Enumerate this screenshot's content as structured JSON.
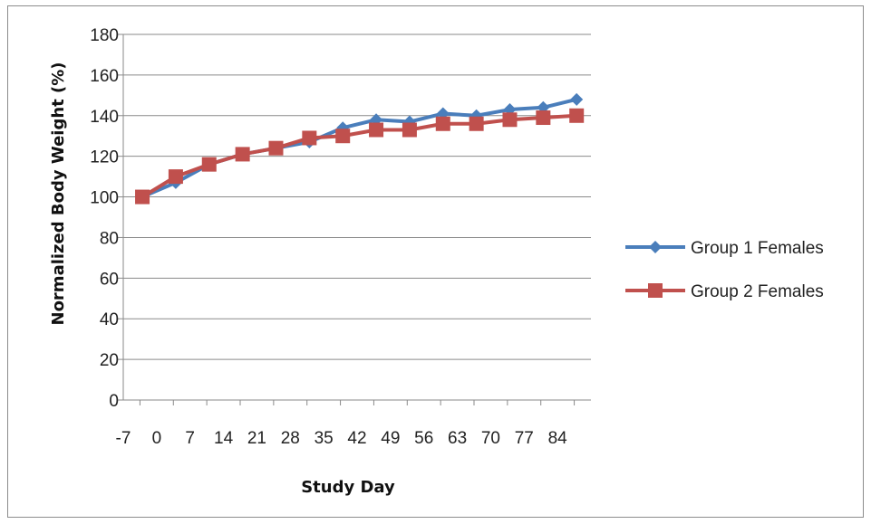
{
  "chart_data": {
    "type": "line",
    "title": "",
    "xlabel": "Study Day",
    "ylabel": "Normalized Body Weight (%)",
    "ylim": [
      0,
      180
    ],
    "yticks": [
      "0",
      "20",
      "40",
      "60",
      "80",
      "100",
      "120",
      "140",
      "160",
      "180"
    ],
    "xticks": [
      "-7",
      "0",
      "7",
      "14",
      "21",
      "28",
      "35",
      "42",
      "49",
      "56",
      "63",
      "70",
      "77",
      "84"
    ],
    "x": [
      -3,
      4,
      11,
      18,
      25,
      32,
      39,
      46,
      53,
      60,
      67,
      74,
      81,
      88
    ],
    "grid": true,
    "legend_position": "right",
    "series": [
      {
        "name": "Group 1 Females",
        "color": "#4a7ebb",
        "marker": "diamond",
        "values": [
          100,
          107,
          116,
          121,
          124,
          127,
          134,
          138,
          137,
          141,
          140,
          143,
          144,
          148
        ]
      },
      {
        "name": "Group 2 Females",
        "color": "#c0504d",
        "marker": "square",
        "values": [
          100,
          110,
          116,
          121,
          124,
          129,
          130,
          133,
          133,
          136,
          136,
          138,
          139,
          140
        ]
      }
    ]
  }
}
